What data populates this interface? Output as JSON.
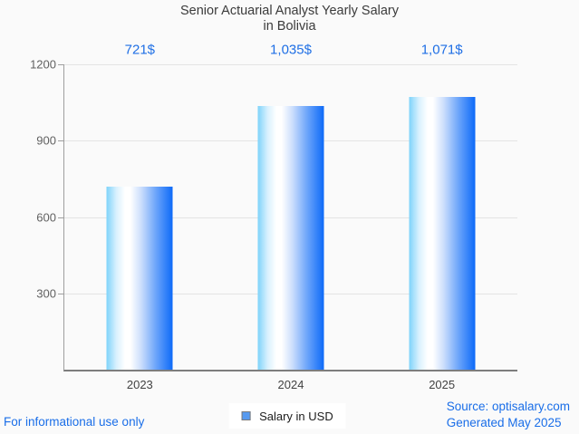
{
  "title": {
    "line1": "Senior Actuarial Analyst Yearly Salary",
    "line2": "in Bolivia"
  },
  "chart_data": {
    "type": "bar",
    "title": "Senior Actuarial Analyst Yearly Salary in Bolivia",
    "categories": [
      "2023",
      "2024",
      "2025"
    ],
    "values": [
      721,
      1035,
      1071
    ],
    "value_labels": [
      "721$",
      "1,035$",
      "1,071$"
    ],
    "series_name": "Salary in USD",
    "xlabel": "",
    "ylabel": "",
    "ylim": [
      0,
      1200
    ],
    "yticks": [
      300,
      600,
      900,
      1200
    ],
    "grid": true,
    "legend_position": "bottom-center",
    "bar_gradient": [
      "#7ed3fa",
      "#d9f1fe",
      "#ffffff",
      "#ffffff",
      "#cddffc",
      "#6ba4fa",
      "#0d6af8"
    ],
    "bar_gradient_stops": [
      0,
      15,
      28,
      36,
      52,
      75,
      100
    ]
  },
  "legend": {
    "label": "Salary in USD",
    "marker_color": "#579af0"
  },
  "footer": {
    "disclaimer": "For informational use only",
    "source": "Source: optisalary.com",
    "generated": "Generated May 2025"
  },
  "colors": {
    "background": "#fafafa",
    "accent_blue": "#1a6ee8",
    "value_label_blue": "#1f6fe5",
    "title_text": "#3b3b3b",
    "axis_line": "#9e9e9e",
    "baseline": "#7d7d7d",
    "gridline": "#e4e4e4",
    "tick_label": "#616161"
  }
}
